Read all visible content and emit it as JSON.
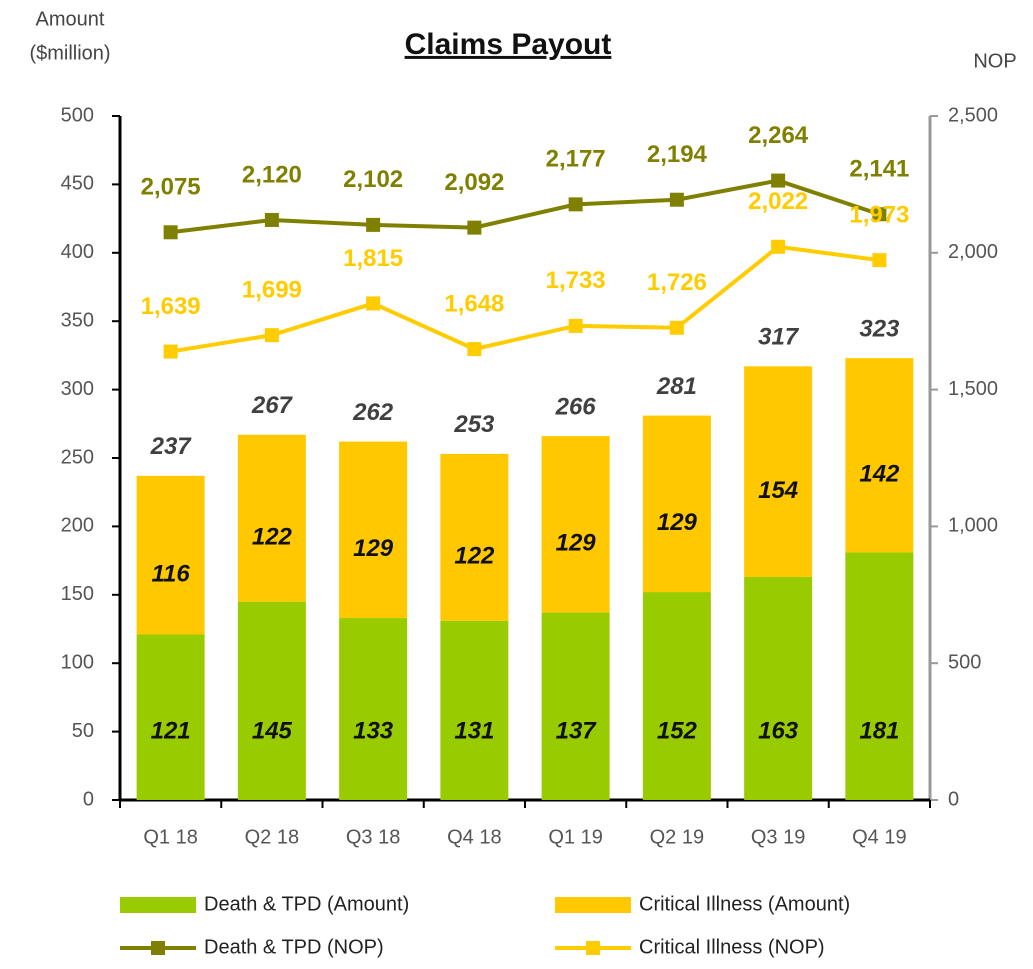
{
  "chart_data": {
    "type": "bar",
    "stacked": true,
    "title": "Claims Payout",
    "y_label": [
      "Amount",
      "($million)"
    ],
    "y2_label": "NOP",
    "categories": [
      "Q1 18",
      "Q2 18",
      "Q3 18",
      "Q4 18",
      "Q1 19",
      "Q2 19",
      "Q3 19",
      "Q4 19"
    ],
    "series": [
      {
        "name": "Death & TPD (Amount)",
        "color": "#99cc00",
        "values": [
          121,
          145,
          133,
          131,
          137,
          152,
          163,
          181
        ]
      },
      {
        "name": "Critical Illness (Amount)",
        "color": "#ffc800",
        "values": [
          116,
          122,
          129,
          122,
          129,
          129,
          154,
          142
        ]
      },
      {
        "name": "Death & TPD (NOP)",
        "type": "line",
        "axis": "y2",
        "color": "#808000",
        "values": [
          2075,
          2120,
          2102,
          2092,
          2177,
          2194,
          2264,
          2141
        ],
        "value_labels": [
          "2,075",
          "2,120",
          "2,102",
          "2,092",
          "2,177",
          "2,194",
          "2,264",
          "2,141"
        ]
      },
      {
        "name": "Critical Illness (NOP)",
        "type": "line",
        "axis": "y2",
        "color": "#ffcc00",
        "values": [
          1639,
          1699,
          1815,
          1648,
          1733,
          1726,
          2022,
          1973
        ],
        "value_labels": [
          "1,639",
          "1,699",
          "1,815",
          "1,648",
          "1,733",
          "1,726",
          "2,022",
          "1,973"
        ]
      }
    ],
    "totals": [
      237,
      267,
      262,
      253,
      266,
      281,
      317,
      323
    ],
    "ylim": [
      0,
      500
    ],
    "yticks": [
      0,
      50,
      100,
      150,
      200,
      250,
      300,
      350,
      400,
      450,
      500
    ],
    "y2lim": [
      0,
      2500
    ],
    "y2ticks": [
      0,
      500,
      {
        "value": 1000,
        "label": "1,000"
      },
      {
        "value": 1500,
        "label": "1,500"
      },
      {
        "value": 2000,
        "label": "2,000"
      },
      {
        "value": 2500,
        "label": "2,500"
      }
    ]
  }
}
